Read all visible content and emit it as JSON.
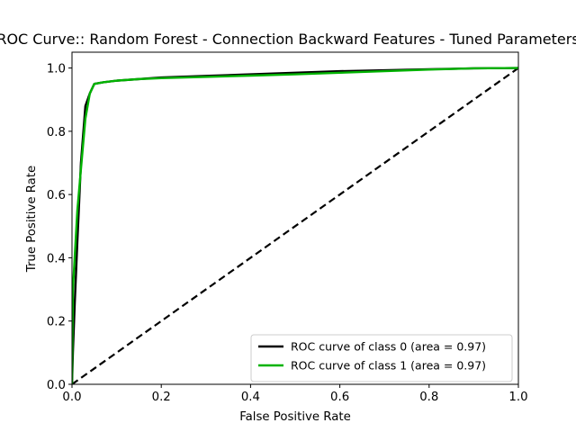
{
  "chart_data": {
    "type": "line",
    "title": "ROC Curve:: Random Forest - Connection Backward Features - Tuned Parameters",
    "xlabel": "False Positive Rate",
    "ylabel": "True Positive Rate",
    "xlim": [
      0.0,
      1.0
    ],
    "ylim": [
      0.0,
      1.05
    ],
    "xticks": [
      0.0,
      0.2,
      0.4,
      0.6,
      0.8,
      1.0
    ],
    "xtick_labels": [
      "0.0",
      "0.2",
      "0.4",
      "0.6",
      "0.8",
      "1.0"
    ],
    "yticks": [
      0.0,
      0.2,
      0.4,
      0.6,
      0.8,
      1.0
    ],
    "ytick_labels": [
      "0.0",
      "0.2",
      "0.4",
      "0.6",
      "0.8",
      "1.0"
    ],
    "grid": false,
    "legend_position": "lower-right",
    "series": [
      {
        "name": "ROC curve of class 0 (area = 0.97)",
        "color": "#000000",
        "style": "solid",
        "x": [
          0.0,
          0.002,
          0.006,
          0.012,
          0.02,
          0.03,
          0.04,
          0.05,
          0.07,
          0.1,
          0.15,
          0.2,
          0.3,
          0.4,
          0.5,
          0.6,
          0.7,
          0.8,
          0.9,
          1.0
        ],
        "y": [
          0.0,
          0.1,
          0.25,
          0.45,
          0.7,
          0.88,
          0.92,
          0.95,
          0.955,
          0.96,
          0.965,
          0.97,
          0.975,
          0.98,
          0.985,
          0.99,
          0.993,
          0.996,
          0.999,
          1.0
        ]
      },
      {
        "name": "ROC curve of class 1 (area = 0.97)",
        "color": "#00b300",
        "style": "solid",
        "x": [
          0.0,
          0.002,
          0.006,
          0.012,
          0.02,
          0.03,
          0.04,
          0.05,
          0.07,
          0.1,
          0.15,
          0.2,
          0.3,
          0.4,
          0.5,
          0.6,
          0.7,
          0.8,
          0.9,
          1.0
        ],
        "y": [
          0.0,
          0.3,
          0.4,
          0.55,
          0.68,
          0.84,
          0.92,
          0.95,
          0.955,
          0.96,
          0.965,
          0.968,
          0.972,
          0.976,
          0.98,
          0.985,
          0.99,
          0.995,
          0.999,
          1.0
        ]
      },
      {
        "name": "",
        "color": "#000000",
        "style": "dashed",
        "x": [
          0.0,
          1.0
        ],
        "y": [
          0.0,
          1.0
        ]
      }
    ]
  }
}
